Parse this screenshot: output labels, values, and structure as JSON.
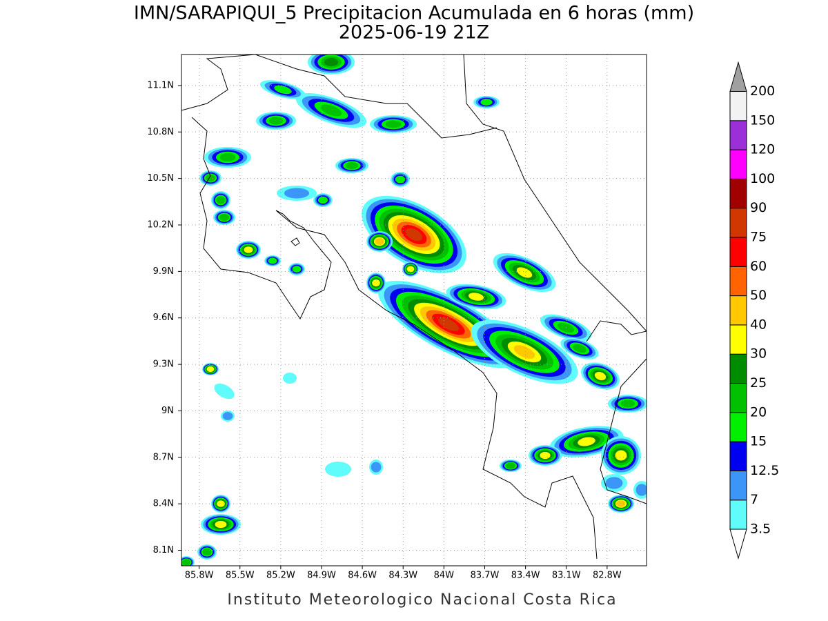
{
  "title": "IMN/SARAPIQUI_5 Precipitacion Acumulada en 6 horas (mm)",
  "subtitle": "2025-06-19 21Z",
  "footer": "Instituto Meteorologico Nacional Costa Rica",
  "map": {
    "xlim": [
      -85.93,
      -82.51
    ],
    "ylim": [
      8.0,
      11.3
    ],
    "xticks": [
      {
        "value": -85.8,
        "label": "85.8W"
      },
      {
        "value": -85.5,
        "label": "85.5W"
      },
      {
        "value": -85.2,
        "label": "85.2W"
      },
      {
        "value": -84.9,
        "label": "84.9W"
      },
      {
        "value": -84.6,
        "label": "84.6W"
      },
      {
        "value": -84.3,
        "label": "84.3W"
      },
      {
        "value": -84.0,
        "label": "84W"
      },
      {
        "value": -83.7,
        "label": "83.7W"
      },
      {
        "value": -83.4,
        "label": "83.4W"
      },
      {
        "value": -83.1,
        "label": "83.1W"
      },
      {
        "value": -82.8,
        "label": "82.8W"
      }
    ],
    "yticks": [
      {
        "value": 11.1,
        "label": "11.1N"
      },
      {
        "value": 10.8,
        "label": "10.8N"
      },
      {
        "value": 10.5,
        "label": "10.5N"
      },
      {
        "value": 10.2,
        "label": "10.2N"
      },
      {
        "value": 9.9,
        "label": "9.9N"
      },
      {
        "value": 9.6,
        "label": "9.6N"
      },
      {
        "value": 9.3,
        "label": "9.3N"
      },
      {
        "value": 9.0,
        "label": "9N"
      },
      {
        "value": 8.7,
        "label": "8.7N"
      },
      {
        "value": 8.4,
        "label": "8.4N"
      },
      {
        "value": 8.1,
        "label": "8.1N"
      }
    ],
    "grid": true
  },
  "colorbar": {
    "levels": [
      3.5,
      7,
      12.5,
      15,
      20,
      25,
      30,
      40,
      50,
      60,
      75,
      90,
      100,
      120,
      150,
      200
    ],
    "colors": [
      "#60fcfc",
      "#3c96f8",
      "#0000f0",
      "#00f000",
      "#00c000",
      "#008c00",
      "#ffff00",
      "#ffc800",
      "#ff6400",
      "#ff0000",
      "#d03800",
      "#a00000",
      "#ff00ff",
      "#9b30d8",
      "#f2f2f2"
    ],
    "under_color": "#ffffff",
    "over_color": "#a0a0a0"
  }
}
